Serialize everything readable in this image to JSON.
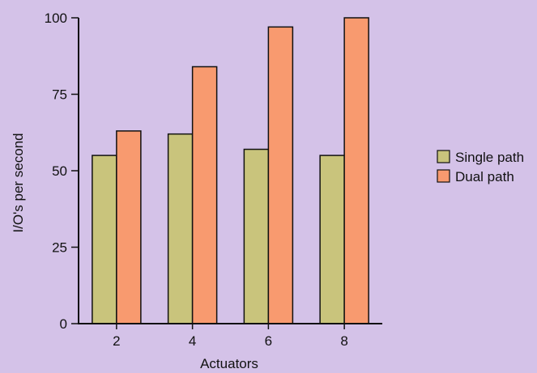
{
  "chart_data": {
    "type": "bar",
    "title": "",
    "xlabel": "Actuators",
    "ylabel": "I/O's per second",
    "categories": [
      "2",
      "4",
      "6",
      "8"
    ],
    "series": [
      {
        "name": "Single path",
        "values": [
          55,
          62,
          57,
          55
        ],
        "color": "#c9c47c"
      },
      {
        "name": "Dual path",
        "values": [
          63,
          84,
          97,
          100
        ],
        "color": "#f89a6f"
      }
    ],
    "ylim": [
      0,
      100
    ],
    "yticks": [
      "0",
      "25",
      "50",
      "75",
      "100"
    ],
    "grid": false,
    "legend": "right"
  }
}
